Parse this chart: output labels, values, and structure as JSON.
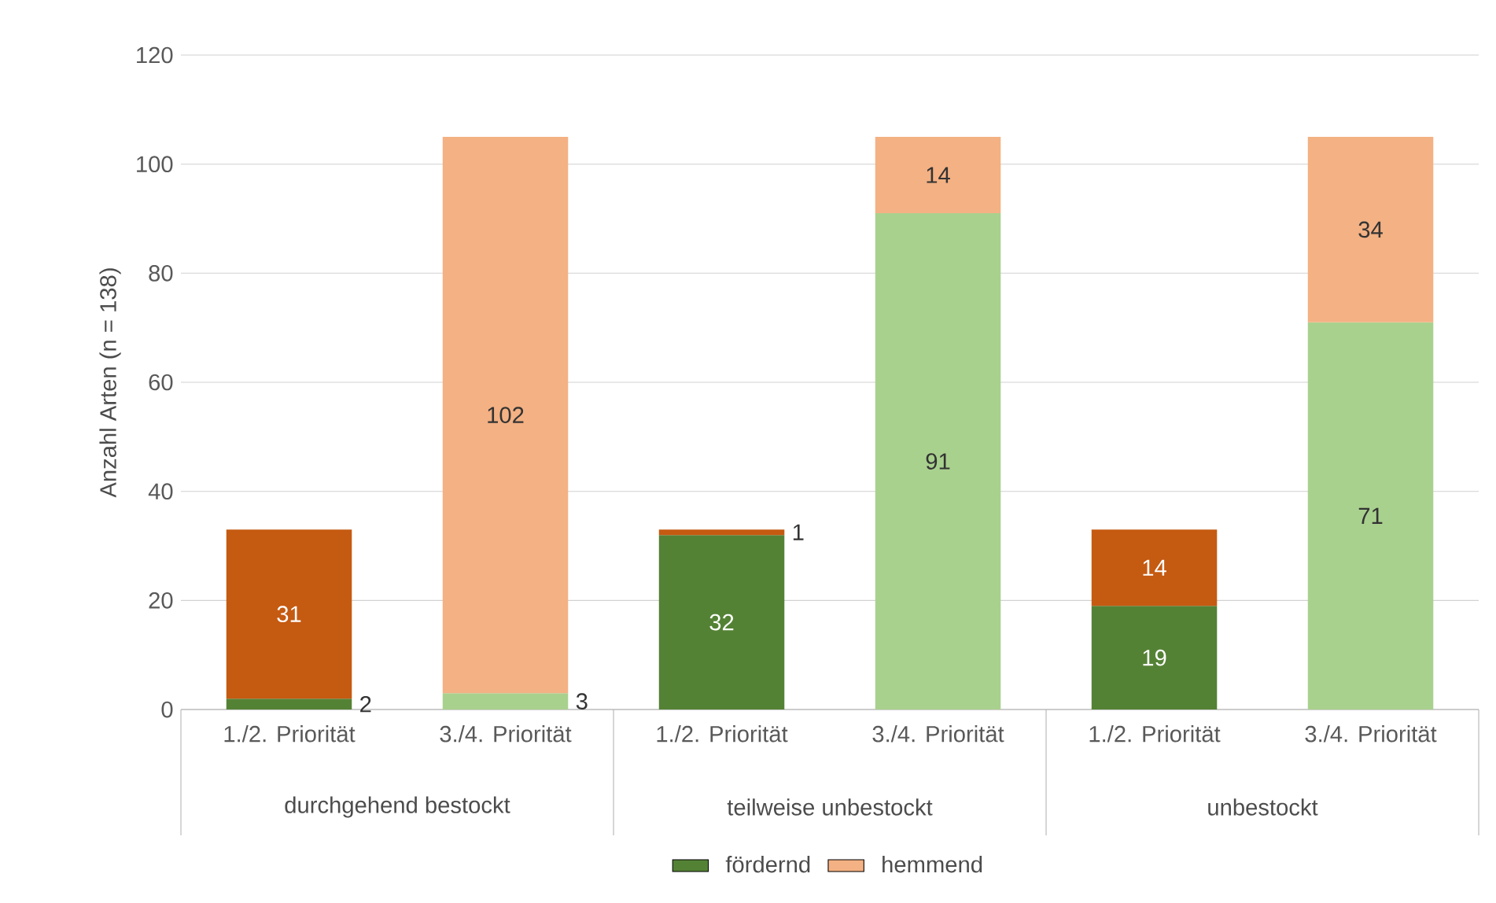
{
  "chart_data": {
    "type": "bar",
    "stacked": true,
    "ylabel": "Anzahl Arten (n = 138)",
    "categories": [
      "1./2. Priorität",
      "3./4. Priorität",
      "1./2. Priorität",
      "3./4. Priorität",
      "1./2. Priorität",
      "3./4. Priorität"
    ],
    "series": [
      {
        "name": "fördernd",
        "color": "#548235",
        "colors": [
          "#548235",
          "#a9d18e",
          "#548235",
          "#a9d18e",
          "#548235",
          "#a9d18e"
        ],
        "values": [
          2,
          3,
          32,
          91,
          19,
          71
        ]
      },
      {
        "name": "hemmend",
        "color": "#f4b183",
        "colors": [
          "#c55a11",
          "#f4b183",
          "#c55a11",
          "#f4b183",
          "#c55a11",
          "#f4b183"
        ],
        "values": [
          31,
          102,
          1,
          14,
          14,
          34
        ]
      }
    ],
    "annotations": [
      "durchgehend bestockt",
      "teilweise unbestockt",
      "unbestockt"
    ],
    "ylim": [
      0,
      120
    ],
    "yticks": [
      0,
      20,
      40,
      60,
      80,
      100,
      120
    ],
    "grid": "y",
    "legend": "bottom",
    "data_labels": true
  }
}
